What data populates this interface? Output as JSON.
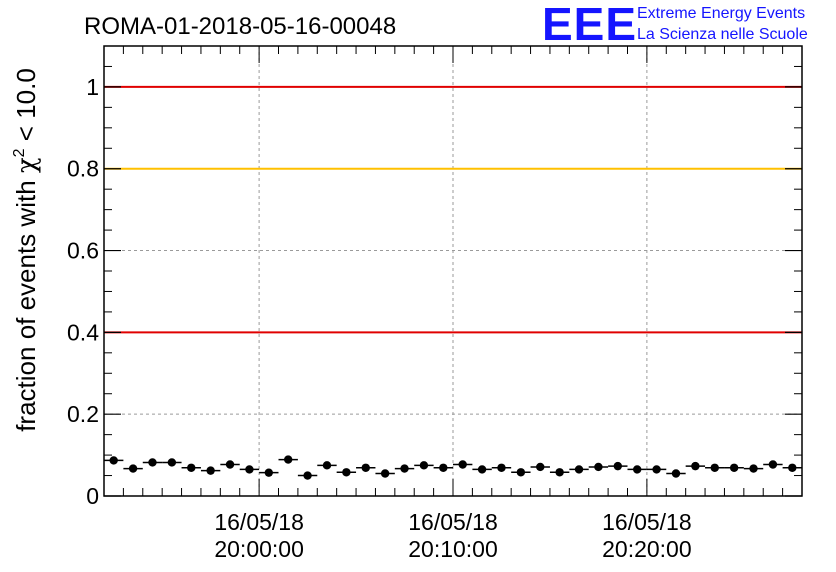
{
  "chart_data": {
    "type": "scatter",
    "title": "ROMA-01-2018-05-16-00048",
    "ylabel_parts": {
      "prefix": "fraction of events with ",
      "chi": "χ",
      "sup": "2",
      "suffix": " < 10.0"
    },
    "xlabel": "",
    "logo": {
      "mark": "EEE",
      "line1": "Extreme Energy Events",
      "line2": "La Scienza nelle Scuole"
    },
    "x_unit": "minutes after 16/05/18 19:52:00",
    "xlim": [
      0,
      36
    ],
    "ylim": [
      0,
      1.1
    ],
    "y_ticks": [
      "0",
      "0.2",
      "0.4",
      "0.6",
      "0.8",
      "1"
    ],
    "y_tick_values": [
      0,
      0.2,
      0.4,
      0.6,
      0.8,
      1.0
    ],
    "x_ticks": [
      {
        "date": "16/05/18",
        "time": "20:00:00",
        "value": 8
      },
      {
        "date": "16/05/18",
        "time": "20:10:00",
        "value": 18
      },
      {
        "date": "16/05/18",
        "time": "20:20:00",
        "value": 28
      }
    ],
    "reference_lines": [
      {
        "y": 1.0,
        "color": "#e00000"
      },
      {
        "y": 0.8,
        "color": "#ffc000"
      },
      {
        "y": 0.4,
        "color": "#e00000"
      }
    ],
    "grid": true,
    "bin_width": 1,
    "series": [
      {
        "x": [
          0.5,
          1.5,
          2.5,
          3.5,
          4.5,
          5.5,
          6.5,
          7.5,
          8.5,
          9.5,
          10.5,
          11.5,
          12.5,
          13.5,
          14.5,
          15.5,
          16.5,
          17.5,
          18.5,
          19.5,
          20.5,
          21.5,
          22.5,
          23.5,
          24.5,
          25.5,
          26.5,
          27.5,
          28.5,
          29.5,
          30.5,
          31.5,
          32.5,
          33.5,
          34.5,
          35.5
        ],
        "y": [
          0.087,
          0.067,
          0.082,
          0.082,
          0.069,
          0.062,
          0.077,
          0.065,
          0.057,
          0.089,
          0.05,
          0.075,
          0.058,
          0.069,
          0.055,
          0.067,
          0.075,
          0.069,
          0.077,
          0.065,
          0.069,
          0.058,
          0.071,
          0.058,
          0.065,
          0.071,
          0.073,
          0.065,
          0.065,
          0.055,
          0.073,
          0.069,
          0.069,
          0.067,
          0.077,
          0.069
        ]
      }
    ]
  }
}
